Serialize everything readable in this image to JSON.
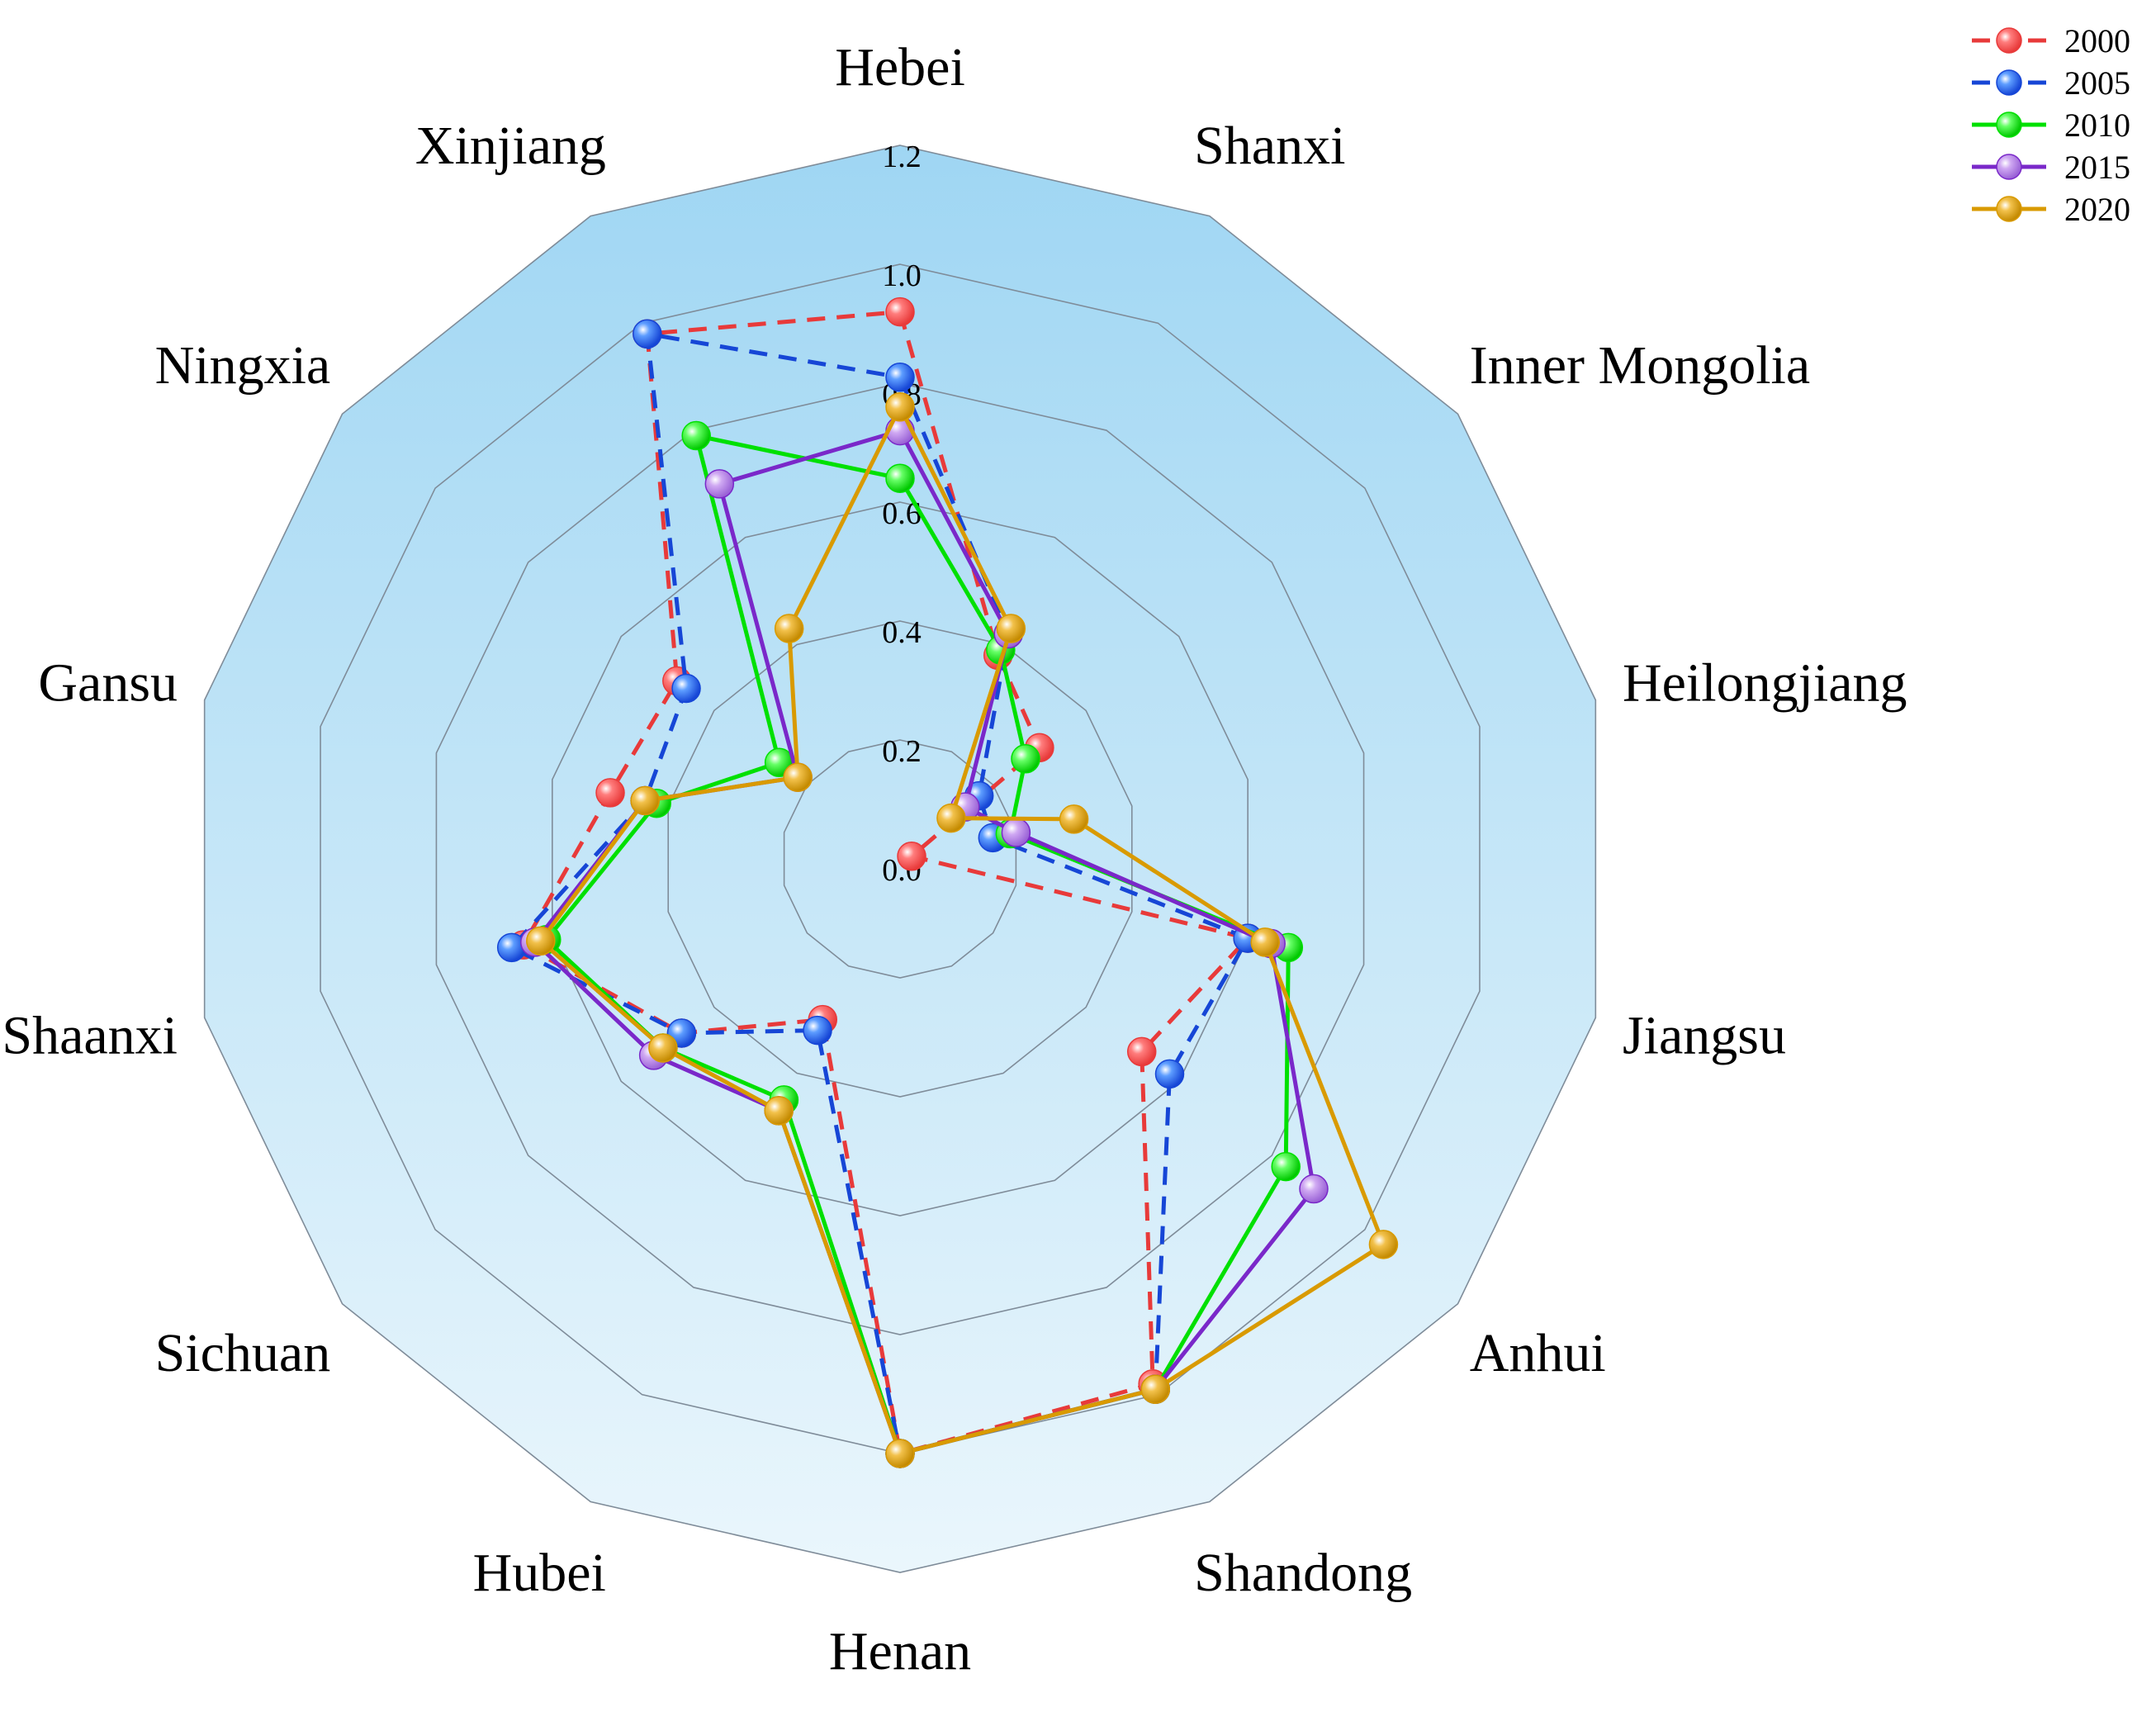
{
  "chart_data": {
    "type": "radar",
    "categories": [
      "Hebei",
      "Shanxi",
      "Inner Mongolia",
      "Heilongjiang",
      "Jiangsu",
      "Anhui",
      "Shandong",
      "Henan",
      "Hubei",
      "Sichuan",
      "Shaanxi",
      "Gansu",
      "Ningxia",
      "Xinjiang"
    ],
    "rlim": [
      0,
      1.2
    ],
    "ticks": [
      "0.0",
      "0.2",
      "0.4",
      "0.6",
      "0.8",
      "1.0",
      "1.2"
    ],
    "tick_values": [
      0,
      0.2,
      0.4,
      0.6,
      0.8,
      1.0,
      1.2
    ],
    "grid": true,
    "legend_position": "top-right",
    "series": [
      {
        "name": "2000",
        "color": "#e83a3a",
        "line": "dashed",
        "values": [
          0.92,
          0.38,
          0.3,
          0.02,
          0.6,
          0.52,
          0.98,
          1.0,
          0.3,
          0.47,
          0.65,
          0.5,
          0.48,
          0.98
        ]
      },
      {
        "name": "2005",
        "color": "#1646d6",
        "line": "dashed",
        "values": [
          0.81,
          0.42,
          0.17,
          0.16,
          0.6,
          0.58,
          0.99,
          1.0,
          0.32,
          0.47,
          0.67,
          0.44,
          0.46,
          0.98
        ]
      },
      {
        "name": "2010",
        "color": "#00e000",
        "line": "solid",
        "values": [
          0.64,
          0.39,
          0.27,
          0.19,
          0.67,
          0.83,
          0.99,
          1.0,
          0.45,
          0.51,
          0.61,
          0.42,
          0.26,
          0.79
        ]
      },
      {
        "name": "2015",
        "color": "#7a28c9",
        "line": "solid",
        "values": [
          0.72,
          0.42,
          0.14,
          0.2,
          0.64,
          0.89,
          0.99,
          1.0,
          0.47,
          0.53,
          0.63,
          0.44,
          0.22,
          0.7
        ]
      },
      {
        "name": "2020",
        "color": "#d99a00",
        "line": "solid",
        "values": [
          0.76,
          0.43,
          0.11,
          0.3,
          0.63,
          1.04,
          0.99,
          1.0,
          0.47,
          0.51,
          0.62,
          0.44,
          0.22,
          0.43
        ]
      }
    ]
  }
}
